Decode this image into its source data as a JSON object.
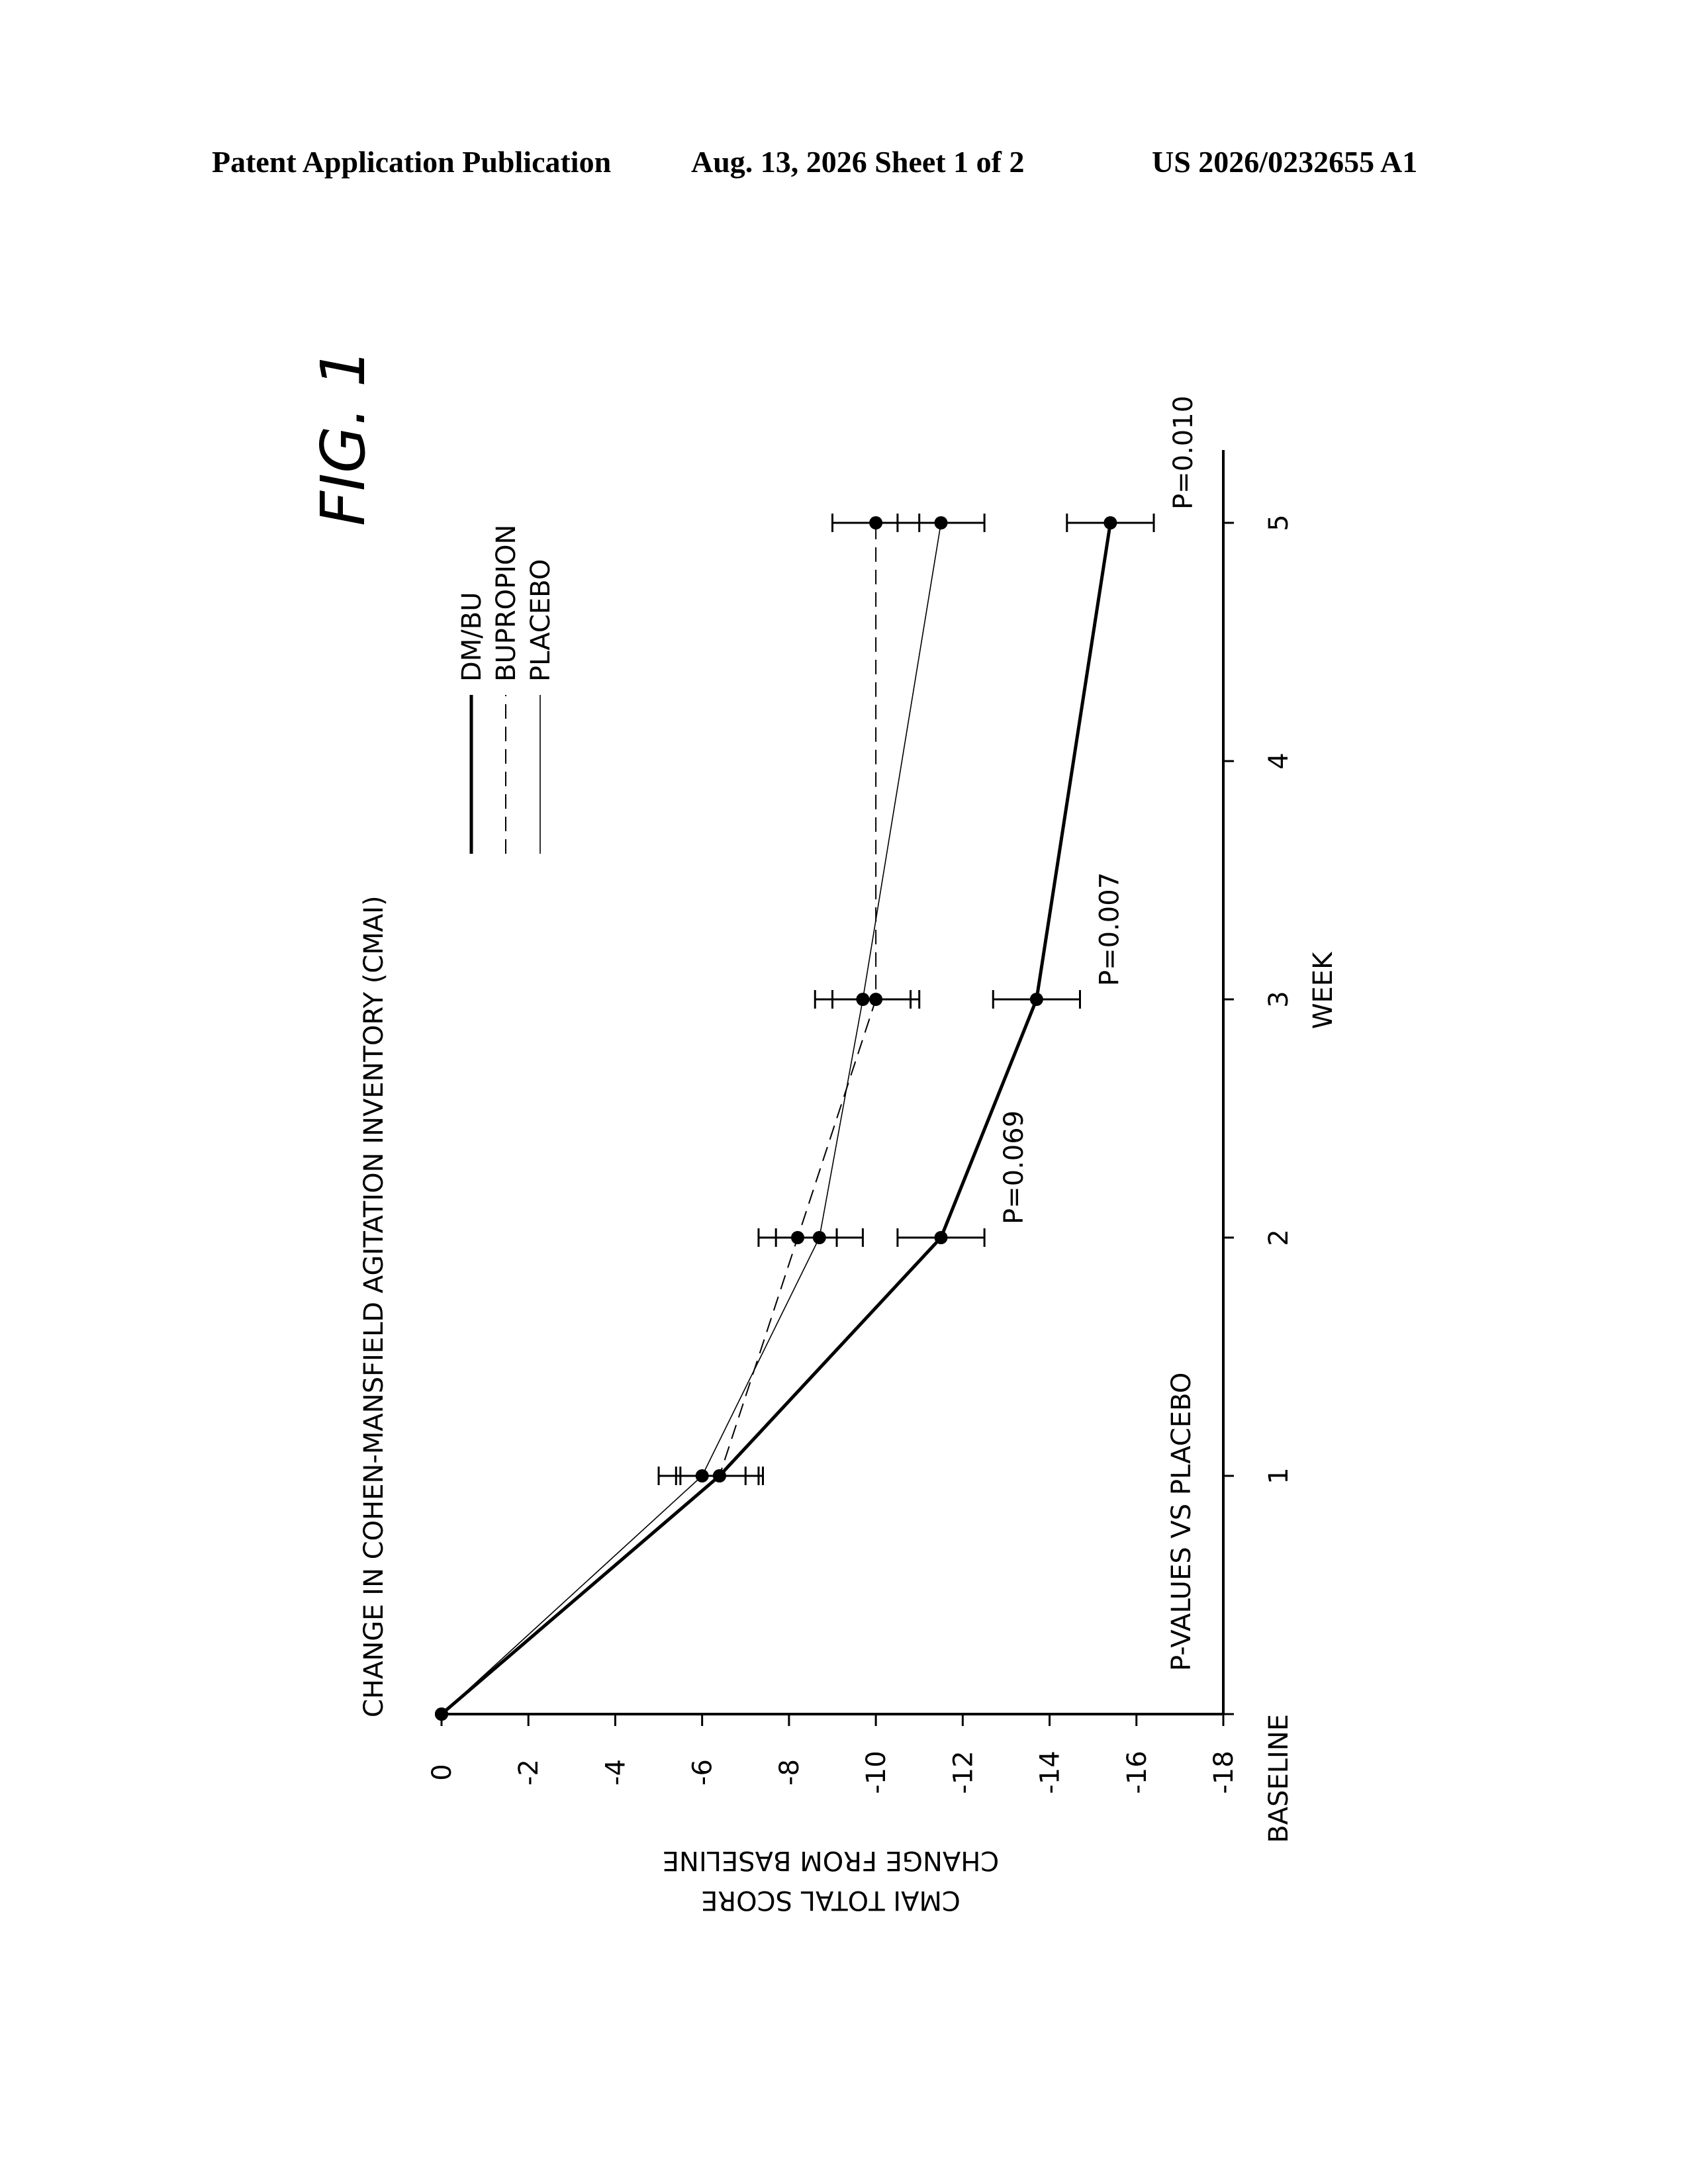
{
  "header": {
    "left": "Patent Application Publication",
    "middle": "Aug. 13, 2026  Sheet 1 of 2",
    "right": "US 2026/0232655 A1"
  },
  "figure": {
    "label": "FIG. 1",
    "annotation": "P-VALUES VS PLACEBO"
  },
  "chart_data": {
    "type": "line",
    "title": "CHANGE IN COHEN-MANSFIELD AGITATION INVENTORY (CMAI)",
    "xlabel": "WEEK",
    "ylabel": [
      "CMAI TOTAL SCORE",
      "CHANGE FROM BASELINE"
    ],
    "categories": [
      "BASELINE",
      "1",
      "2",
      "3",
      "4",
      "5"
    ],
    "x": [
      0,
      1,
      2,
      3,
      4,
      5
    ],
    "ylim": [
      -18,
      0
    ],
    "yticks": [
      0,
      -2,
      -4,
      -6,
      -8,
      -10,
      -12,
      -14,
      -16,
      -18
    ],
    "grid": false,
    "legend_position": "top-right",
    "series": [
      {
        "name": "DM/BU",
        "style": "solid-thick",
        "color": "#000000",
        "x": [
          0,
          1,
          2,
          3,
          5
        ],
        "values": [
          0,
          -6.4,
          -11.5,
          -13.7,
          -15.4
        ],
        "error": [
          0,
          1.0,
          1.0,
          1.0,
          1.0
        ]
      },
      {
        "name": "BUPROPION",
        "style": "dashed",
        "color": "#000000",
        "x": [
          0,
          1,
          2,
          3,
          5
        ],
        "values": [
          0,
          -6.4,
          -8.2,
          -10.0,
          -10.0
        ],
        "error": [
          0,
          0.9,
          0.9,
          1.0,
          1.0
        ]
      },
      {
        "name": "PLACEBO",
        "style": "thin",
        "color": "#000000",
        "x": [
          0,
          1,
          2,
          3,
          5
        ],
        "values": [
          0,
          -6.0,
          -8.7,
          -9.7,
          -11.5
        ],
        "error": [
          0,
          1.0,
          1.0,
          1.1,
          1.0
        ]
      }
    ],
    "p_values": [
      {
        "x": 2,
        "label": "P=0.069"
      },
      {
        "x": 3,
        "label": "P=0.007"
      },
      {
        "x": 5,
        "label": "P=0.010"
      }
    ]
  }
}
